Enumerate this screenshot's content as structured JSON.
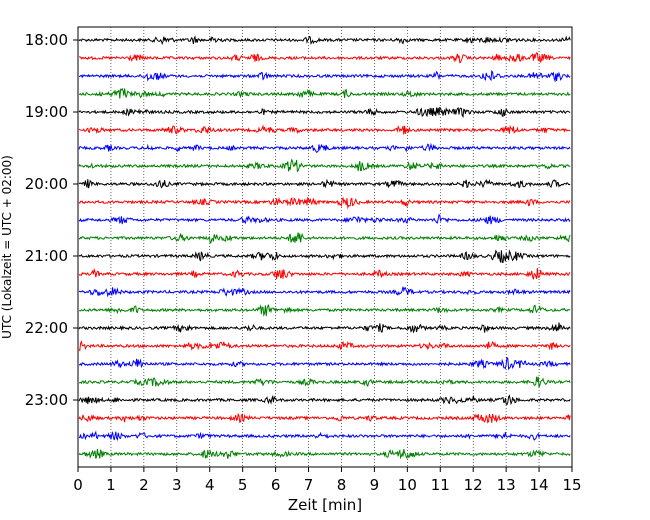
{
  "chart_data": {
    "type": "line",
    "xlabel": "Zeit  [min]",
    "ylabel": "UTC (Lokalzeit = UTC + 02:00)",
    "xlim": [
      0,
      15
    ],
    "x_ticks": [
      "0",
      "1",
      "2",
      "3",
      "4",
      "5",
      "6",
      "7",
      "8",
      "9",
      "10",
      "11",
      "12",
      "13",
      "14",
      "15"
    ],
    "y_ticks": [
      "18:00",
      "19:00",
      "20:00",
      "21:00",
      "22:00",
      "23:00"
    ],
    "trace_start": "18:00",
    "trace_interval_minutes": 15,
    "trace_count": 24,
    "trace_colors": [
      "#000000",
      "#ff0000",
      "#0000ff",
      "#008000"
    ],
    "grid": "vertical dotted at each minute",
    "series": []
  }
}
